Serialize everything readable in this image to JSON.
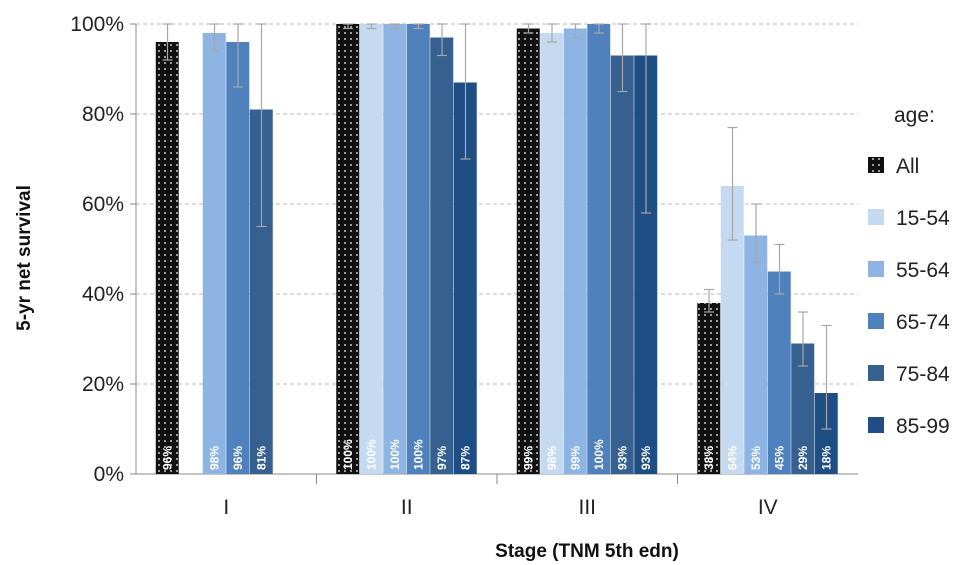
{
  "chart_data": {
    "type": "bar",
    "title": "",
    "xlabel": "Stage (TNM 5th edn)",
    "ylabel": "5-yr net survival",
    "ylim": [
      0,
      100
    ],
    "yticks": [
      "0%",
      "20%",
      "40%",
      "60%",
      "80%",
      "100%"
    ],
    "grid": true,
    "legend_title": "age:",
    "legend_position": "right",
    "categories": [
      "I",
      "II",
      "III",
      "IV"
    ],
    "series": [
      {
        "name": "All",
        "color": "#111111",
        "pattern": "dotted",
        "values": [
          96,
          100,
          99,
          38
        ],
        "labels": [
          "96%",
          "100%",
          "99%",
          "38%"
        ],
        "err_low": [
          92,
          99,
          98,
          36
        ],
        "err_high": [
          100,
          100,
          100,
          41
        ]
      },
      {
        "name": "15-54",
        "color": "#c5d9f1",
        "values": [
          null,
          100,
          98,
          64
        ],
        "labels": [
          "",
          "100%",
          "98%",
          "64%"
        ],
        "err_low": [
          null,
          99,
          96,
          52
        ],
        "err_high": [
          null,
          100,
          100,
          77
        ]
      },
      {
        "name": "55-64",
        "color": "#8db4e2",
        "values": [
          98,
          100,
          99,
          53
        ],
        "labels": [
          "98%",
          "100%",
          "99%",
          "53%"
        ],
        "err_low": [
          94,
          99,
          97,
          47
        ],
        "err_high": [
          100,
          100,
          100,
          60
        ]
      },
      {
        "name": "65-74",
        "color": "#4f81bd",
        "values": [
          96,
          100,
          100,
          45
        ],
        "labels": [
          "96%",
          "100%",
          "100%",
          "45%"
        ],
        "err_low": [
          86,
          99,
          98,
          40
        ],
        "err_high": [
          100,
          100,
          100,
          51
        ]
      },
      {
        "name": "75-84",
        "color": "#35608f",
        "values": [
          81,
          97,
          93,
          29
        ],
        "labels": [
          "81%",
          "97%",
          "93%",
          "29%"
        ],
        "err_low": [
          55,
          93,
          85,
          24
        ],
        "err_high": [
          100,
          100,
          100,
          36
        ]
      },
      {
        "name": "85-99",
        "color": "#1f4e85",
        "values": [
          null,
          87,
          93,
          18
        ],
        "labels": [
          "",
          "87%",
          "93%",
          "18%"
        ],
        "err_low": [
          null,
          70,
          58,
          10
        ],
        "err_high": [
          null,
          100,
          100,
          33
        ]
      }
    ]
  }
}
